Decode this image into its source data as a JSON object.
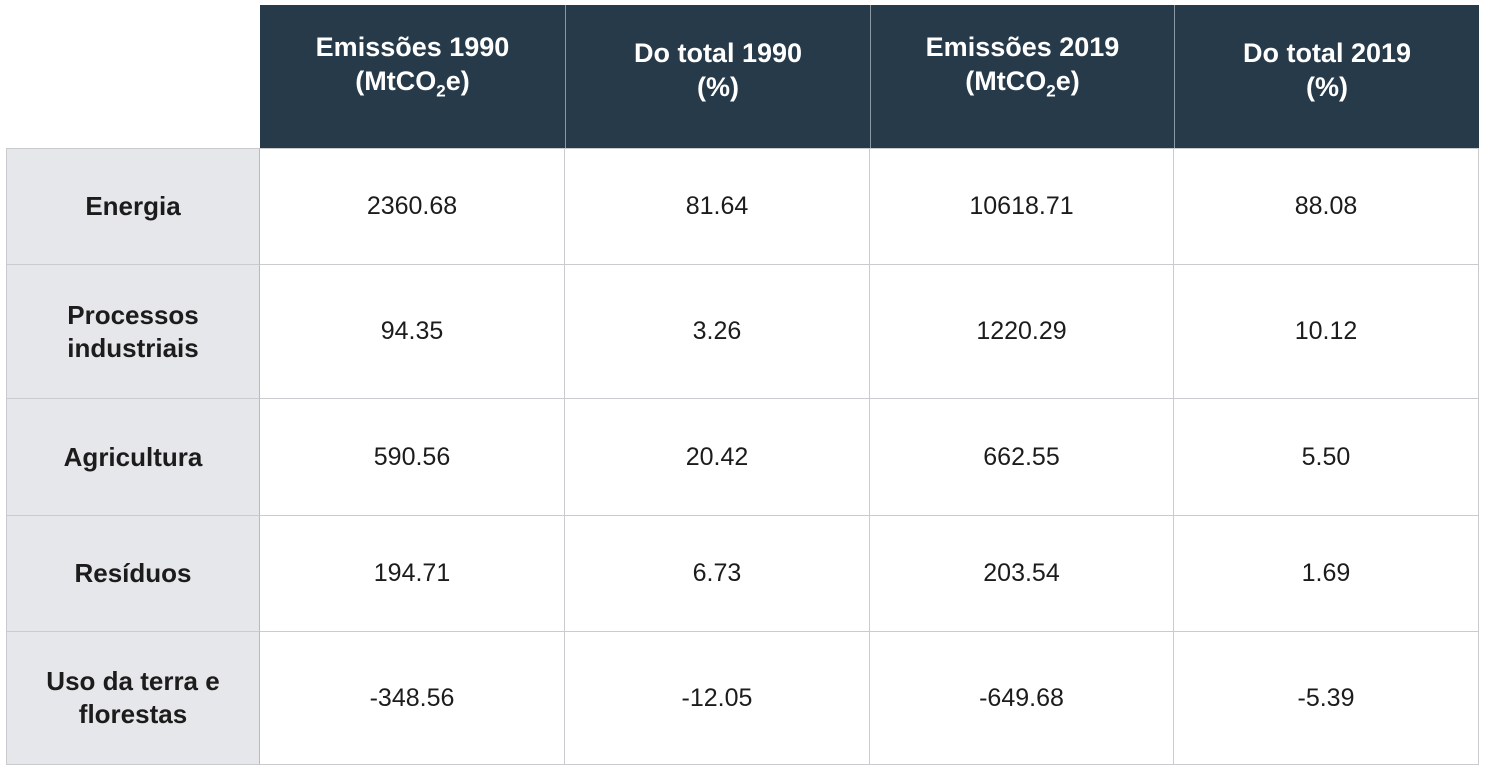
{
  "columns": [
    {
      "line1": "Emissões 1990",
      "line2_pre": "(MtCO",
      "line2_sub": "2",
      "line2_post": "e)"
    },
    {
      "line1": "Do total 1990",
      "line2_pre": "(%)",
      "line2_sub": "",
      "line2_post": ""
    },
    {
      "line1": "Emissões 2019",
      "line2_pre": "(MtCO",
      "line2_sub": "2",
      "line2_post": "e)"
    },
    {
      "line1": "Do total 2019",
      "line2_pre": "(%)",
      "line2_sub": "",
      "line2_post": ""
    }
  ],
  "rows": [
    {
      "label": "Energia",
      "values": [
        "2360.68",
        "81.64",
        "10618.71",
        "88.08"
      ]
    },
    {
      "label": "Processos industriais",
      "values": [
        "94.35",
        "3.26",
        "1220.29",
        "10.12"
      ]
    },
    {
      "label": "Agricultura",
      "values": [
        "590.56",
        "20.42",
        "662.55",
        "5.50"
      ]
    },
    {
      "label": "Resíduos",
      "values": [
        "194.71",
        "6.73",
        "203.54",
        "1.69"
      ]
    },
    {
      "label": "Uso da terra e florestas",
      "values": [
        "-348.56",
        "-12.05",
        "-649.68",
        "-5.39"
      ]
    }
  ],
  "colors": {
    "header_bg": "#263a4a",
    "header_text": "#ffffff",
    "row_label_bg": "#e6e7ea",
    "grid": "#c9cbcf"
  }
}
